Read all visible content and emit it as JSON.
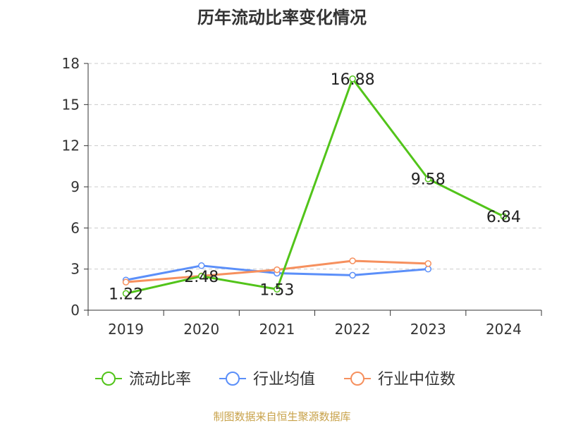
{
  "chart_data": {
    "type": "line",
    "title": "历年流动比率变化情况",
    "categories": [
      "2019",
      "2020",
      "2021",
      "2022",
      "2023",
      "2024"
    ],
    "yticks": [
      0,
      3,
      6,
      9,
      12,
      15,
      18
    ],
    "ylim": [
      0,
      18
    ],
    "grid": true,
    "legend_position": "bottom",
    "series": [
      {
        "name": "流动比率",
        "color": "#52c41a",
        "values": [
          1.22,
          2.48,
          1.53,
          16.88,
          9.58,
          6.84
        ],
        "labels": [
          "1.22",
          "2.48",
          "1.53",
          "16.88",
          "9.58",
          "6.84"
        ]
      },
      {
        "name": "行业均值",
        "color": "#5b8ff9",
        "values": [
          2.2,
          3.25,
          2.7,
          2.55,
          3.0,
          null
        ]
      },
      {
        "name": "行业中位数",
        "color": "#f6905e",
        "values": [
          2.05,
          2.5,
          2.95,
          3.6,
          3.4,
          null
        ]
      }
    ]
  },
  "footer": {
    "source": "制图数据来自恒生聚源数据库"
  }
}
